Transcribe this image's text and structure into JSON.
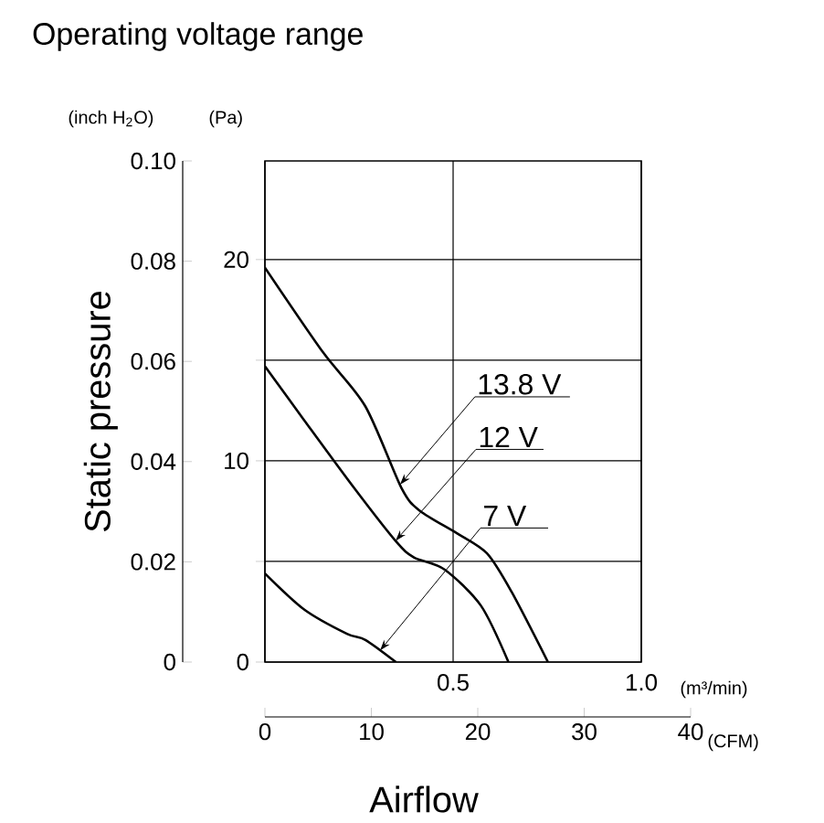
{
  "chart_data": {
    "type": "line",
    "title": "Operating voltage range",
    "xlabel": "Airflow",
    "ylabel": "Static pressure",
    "xlim": [
      0,
      1
    ],
    "xticks": [
      {
        "value": 0,
        "label": null
      },
      0.5,
      {
        "value": 1,
        "label": "1.0"
      }
    ],
    "x2lim": [
      0,
      40
    ],
    "x2ticks": [
      0,
      10,
      20,
      30,
      40
    ],
    "ylim": [
      0,
      0.1
    ],
    "yticks": [
      0,
      0.02,
      0.04,
      0.06,
      0.08,
      {
        "value": 0.1,
        "label": "0.10"
      }
    ],
    "y2lim": [
      0,
      24.9
    ],
    "y2ticks": [
      0,
      {
        "value": 5,
        "label": null
      },
      10,
      {
        "value": 15,
        "label": null
      },
      20
    ],
    "grid": true,
    "marker": "none",
    "series": [
      {
        "name": "13.8 V",
        "color": "#000000",
        "axis": "y2",
        "x": [
          0,
          0.154,
          0.267,
          0.364,
          0.413,
          0.51,
          0.59,
          0.655,
          0.752
        ],
        "values": [
          19.6,
          15.4,
          12.7,
          8.6,
          7.5,
          6.4,
          5.4,
          3.5,
          0
        ]
      },
      {
        "name": "12 V",
        "color": "#000000",
        "axis": "y2",
        "x": [
          0,
          0.105,
          0.235,
          0.348,
          0.396,
          0.477,
          0.574,
          0.647
        ],
        "values": [
          14.7,
          12.0,
          8.7,
          6.0,
          5.2,
          4.6,
          2.8,
          0
        ]
      },
      {
        "name": "7 V",
        "color": "#000000",
        "axis": "y2",
        "x": [
          0,
          0.105,
          0.218,
          0.267,
          0.348
        ],
        "values": [
          4.4,
          2.6,
          1.4,
          1.1,
          0
        ]
      }
    ],
    "annotations": [
      "(m³/min)",
      "(CFM)",
      "(inch H$_{2}$O)",
      "(Pa)"
    ]
  }
}
